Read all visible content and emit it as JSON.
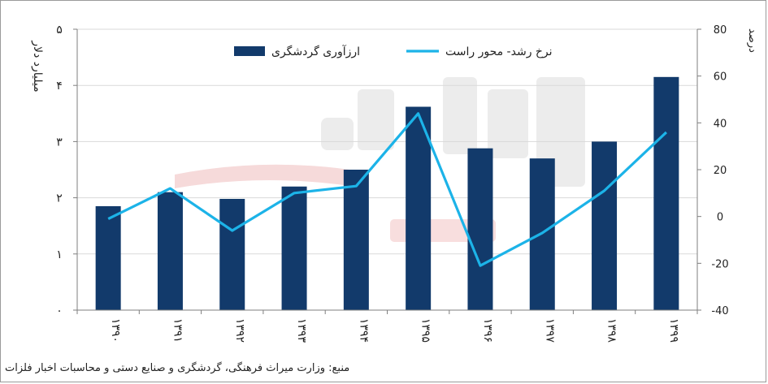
{
  "chart_data": {
    "type": "bar+line",
    "categories": [
      "۱۳۹۰",
      "۱۳۹۱",
      "۱۳۹۲",
      "۱۳۹۳",
      "۱۳۹۴",
      "۱۳۹۵",
      "۱۳۹۶",
      "۱۳۹۷",
      "۱۳۹۸",
      "۱۳۹۹"
    ],
    "series": [
      {
        "name": "ارزآوری گردشگری",
        "type": "bar",
        "axis": "left",
        "color": "#123a6b",
        "values": [
          1.85,
          2.1,
          1.98,
          2.2,
          2.5,
          3.62,
          2.88,
          2.7,
          3.0,
          4.15
        ]
      },
      {
        "name": "نرخ رشد- محور راست",
        "type": "line",
        "axis": "right",
        "color": "#1cb3e8",
        "values": [
          -1,
          12,
          -6,
          10,
          13,
          44,
          -21,
          -7,
          11,
          36
        ]
      }
    ],
    "left_axis": {
      "label": "میلیارد دلار",
      "min": 0,
      "max": 5,
      "ticks": [
        0,
        1,
        2,
        3,
        4,
        5
      ],
      "tick_labels": [
        "۰",
        "۱",
        "۲",
        "۳",
        "۴",
        "۵"
      ]
    },
    "right_axis": {
      "label": "درصد",
      "min": -40,
      "max": 80,
      "ticks": [
        -40,
        -20,
        0,
        20,
        40,
        60,
        80
      ],
      "tick_labels": [
        "-40",
        "-20",
        "0",
        "20",
        "40",
        "60",
        "80"
      ]
    },
    "grid": true,
    "legend": "top",
    "source": "منبع: وزارت میراث فرهنگی، گردشگری و صنایع دستی و محاسبات اخبار فلزات"
  }
}
